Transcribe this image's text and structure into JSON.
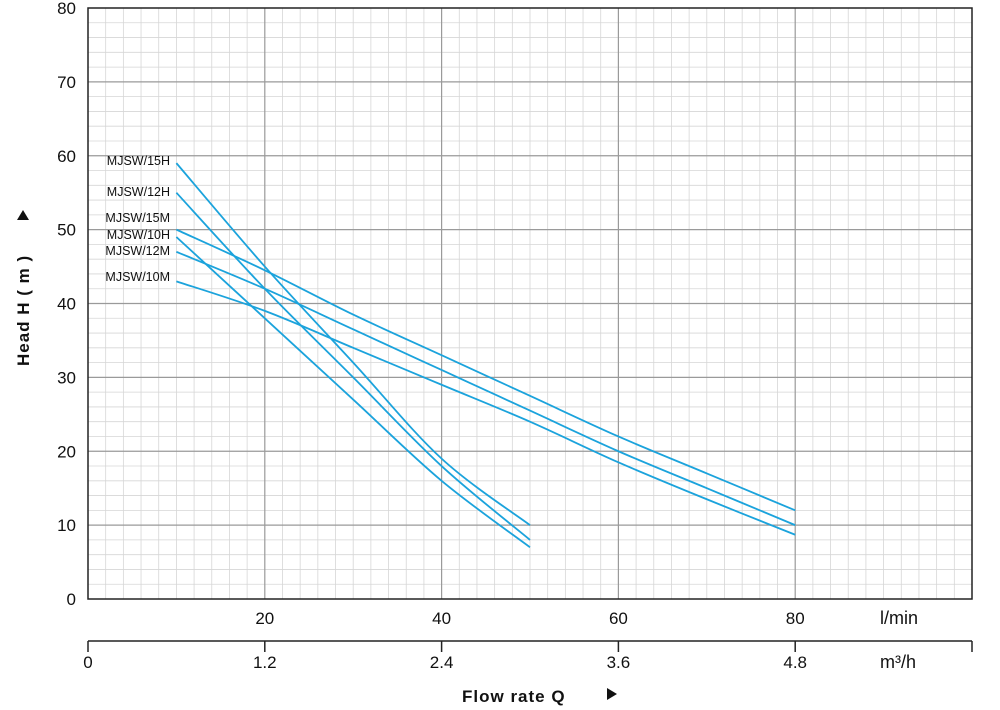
{
  "chart_data": {
    "type": "line",
    "ylabel": "Head H ( m )",
    "xlabel": "Flow rate Q",
    "xlim": [
      0,
      100
    ],
    "ylim": [
      0,
      80
    ],
    "y_ticks": [
      "0",
      "10",
      "20",
      "30",
      "40",
      "50",
      "60",
      "70",
      "80"
    ],
    "x_ticks_lmin": [
      "20",
      "40",
      "60",
      "80"
    ],
    "x_unit_lmin": "l/min",
    "x_ticks_m3h": [
      "0",
      "1.2",
      "2.4",
      "3.6",
      "4.8"
    ],
    "x_unit_m3h": "m³/h",
    "grid": true,
    "line_color": "#1ba3dc",
    "series": [
      {
        "name": "MJSW/15H",
        "x": [
          10,
          20,
          30,
          40,
          50
        ],
        "y": [
          59,
          45,
          32,
          19,
          10
        ]
      },
      {
        "name": "MJSW/12H",
        "x": [
          10,
          20,
          30,
          40,
          50
        ],
        "y": [
          55,
          42,
          30,
          18,
          8
        ]
      },
      {
        "name": "MJSW/15M",
        "x": [
          10,
          20,
          30,
          40,
          50,
          60,
          70,
          80
        ],
        "y": [
          50,
          44.5,
          38.5,
          33,
          27.5,
          22,
          17,
          12
        ]
      },
      {
        "name": "MJSW/10H",
        "x": [
          10,
          20,
          30,
          40,
          50
        ],
        "y": [
          49,
          38,
          27,
          16,
          7
        ]
      },
      {
        "name": "MJSW/12M",
        "x": [
          10,
          20,
          30,
          40,
          50,
          60,
          70,
          80
        ],
        "y": [
          47,
          42,
          36.5,
          31,
          25.5,
          20,
          15,
          10
        ]
      },
      {
        "name": "MJSW/10M",
        "x": [
          10,
          20,
          30,
          40,
          50,
          60,
          70,
          80
        ],
        "y": [
          43,
          39,
          34,
          29,
          24,
          18.5,
          13.5,
          8.7
        ]
      }
    ]
  }
}
